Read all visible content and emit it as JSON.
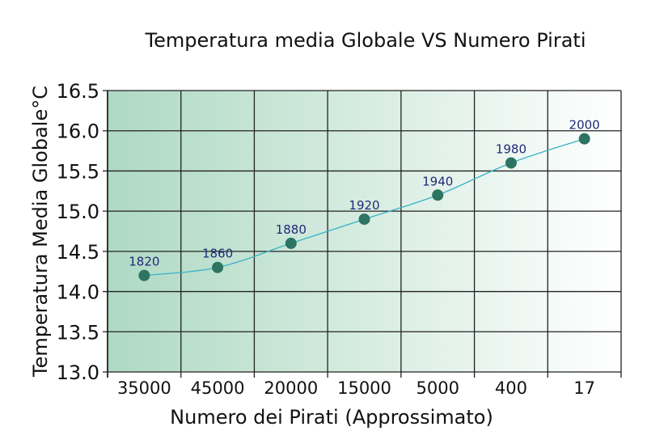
{
  "chart_data": {
    "type": "line",
    "title": "Temperatura media Globale VS Numero Pirati",
    "xlabel": "Numero dei Pirati (Approssimato)",
    "ylabel": "Temperatura Media Globale°C",
    "categories": [
      "35000",
      "45000",
      "20000",
      "15000",
      "5000",
      "400",
      "17"
    ],
    "series": [
      {
        "name": "Temperatura",
        "values": [
          14.2,
          14.3,
          14.6,
          14.9,
          15.2,
          15.6,
          15.9
        ],
        "point_labels": [
          "1820",
          "1860",
          "1880",
          "1920",
          "1940",
          "1980",
          "2000"
        ]
      }
    ],
    "ylim": [
      13.0,
      16.5
    ],
    "yticks": [
      "13.0",
      "13.5",
      "14.0",
      "14.5",
      "15.0",
      "15.5",
      "16.0",
      "16.5"
    ],
    "grid": true,
    "colors": {
      "background_left": "#aed9c3",
      "background_right": "#ffffff",
      "marker": "#2e7462",
      "line": "#3ab2c6",
      "point_label": "#1f2a78",
      "grid": "#222222"
    }
  }
}
